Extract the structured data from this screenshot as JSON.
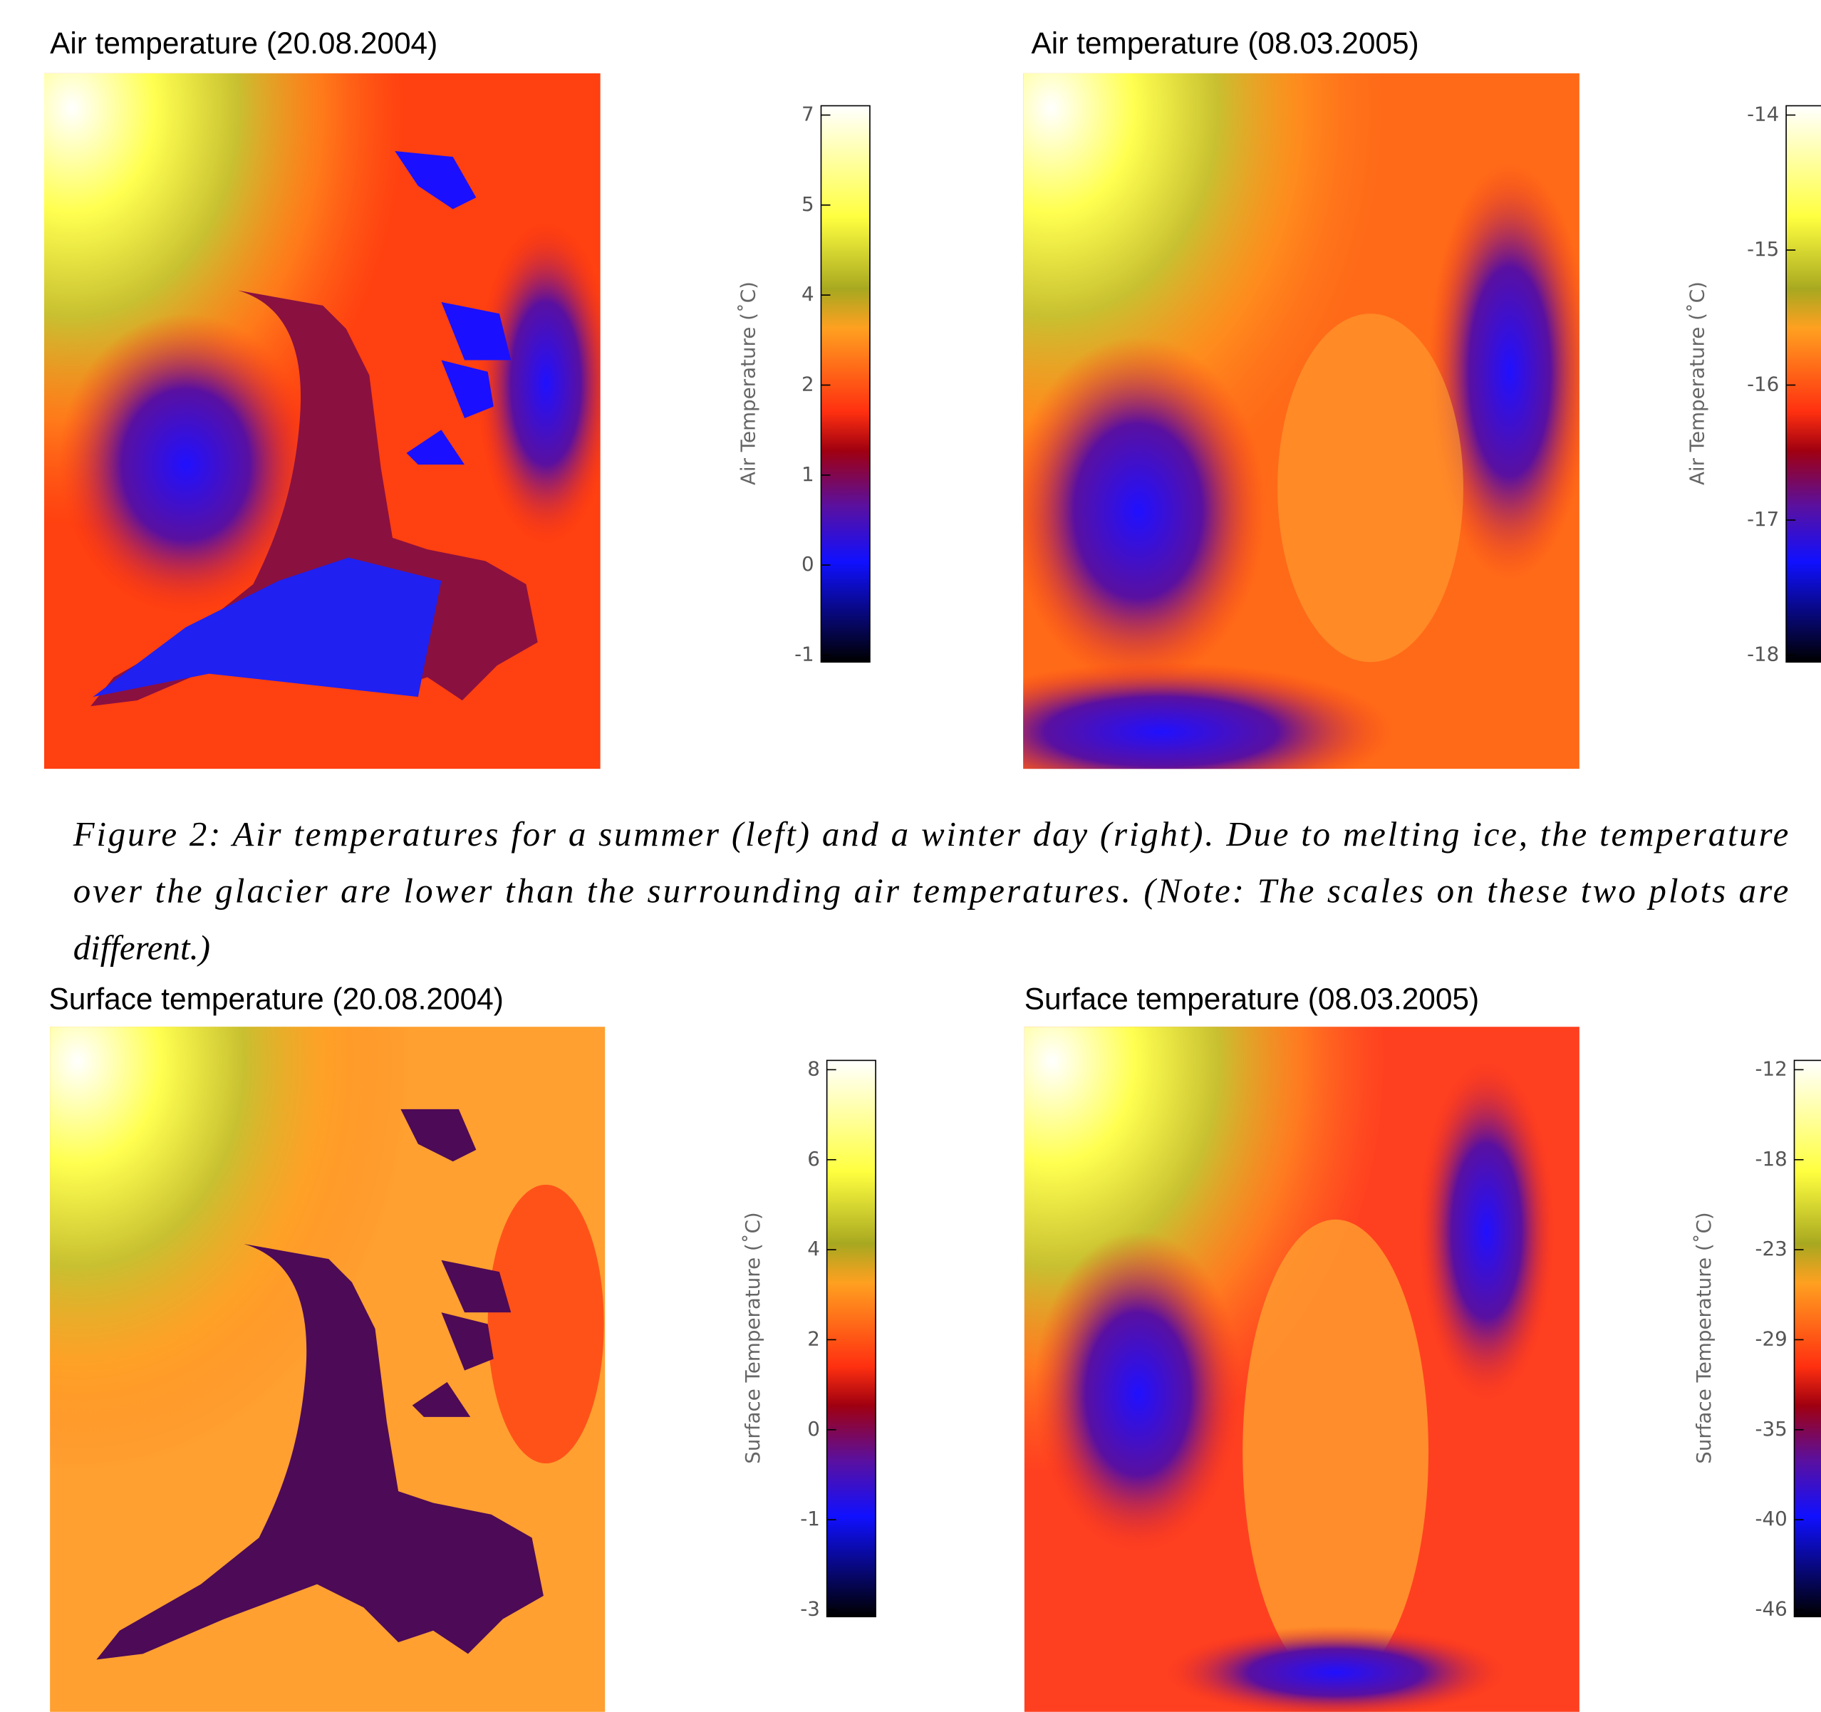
{
  "panels": [
    {
      "title": "Air temperature   (20.08.2004)",
      "colorbar": {
        "label": "Air Temperature (˚C)",
        "ticks": [
          7,
          5,
          4,
          2,
          1,
          0,
          -1
        ]
      }
    },
    {
      "title": "Air temperature (08.03.2005)",
      "colorbar": {
        "label": "Air Temperature (˚C)",
        "ticks": [
          -14,
          -15,
          -16,
          -17,
          -18
        ]
      }
    },
    {
      "title": "Surface temperature (20.08.2004)",
      "colorbar": {
        "label": "Surface Temperature (˚C)",
        "ticks": [
          8,
          6,
          4,
          2,
          0,
          -1,
          -3
        ]
      }
    },
    {
      "title": "Surface temperature (08.03.2005)",
      "colorbar": {
        "label": "Surface Temperature (˚C)",
        "ticks": [
          -12,
          -18,
          -23,
          -29,
          -35,
          -40,
          -46
        ]
      }
    }
  ],
  "caption": [
    "Figure 2: Air temperatures for a summer (left) and a winter day (right). Due to melting ice, the temperature",
    "over the glacier are lower than the surrounding air temperatures. (Note: The scales on these two plots are",
    "different.)"
  ]
}
